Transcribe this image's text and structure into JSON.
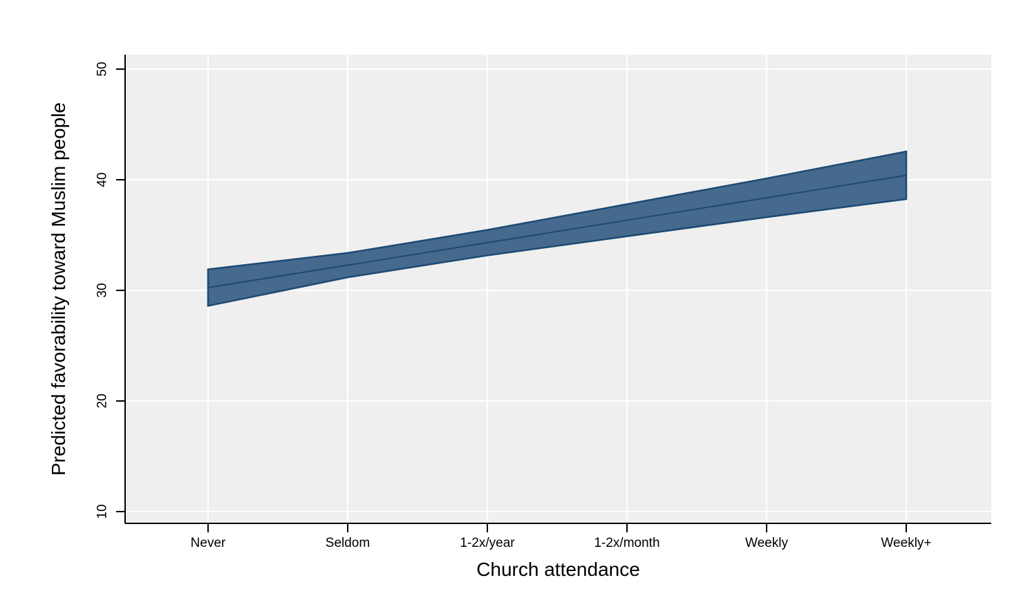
{
  "page": {
    "background_color": "#ffffff",
    "plot_background_color": "#efefef",
    "gridline_color": "#ffffff",
    "axis_color": "#000000"
  },
  "chart_data": {
    "type": "area",
    "subtype": "linear-fit-with-confidence-band",
    "title": "",
    "xlabel": "Church attendance",
    "ylabel": "Predicted favorability toward Muslim people",
    "categories": [
      "Never",
      "Seldom",
      "1-2x/year",
      "1-2x/month",
      "Weekly",
      "Weekly+"
    ],
    "series": [
      {
        "name": "Linear prediction",
        "values": [
          30.25,
          32.28,
          34.31,
          36.34,
          38.37,
          40.4
        ]
      },
      {
        "name": "CI lower",
        "values": [
          28.6,
          31.18,
          33.16,
          34.89,
          36.62,
          38.25
        ]
      },
      {
        "name": "CI upper",
        "values": [
          31.9,
          33.38,
          35.46,
          37.79,
          40.12,
          42.55
        ]
      }
    ],
    "yticks": [
      10,
      20,
      30,
      40,
      50
    ],
    "ylim": [
      8.9,
      51.3
    ],
    "grid": true,
    "legend": "none",
    "band_fill_color": "#46698e",
    "band_stroke_color": "#1c4a73",
    "fit_line_color": "#1c4a73"
  }
}
